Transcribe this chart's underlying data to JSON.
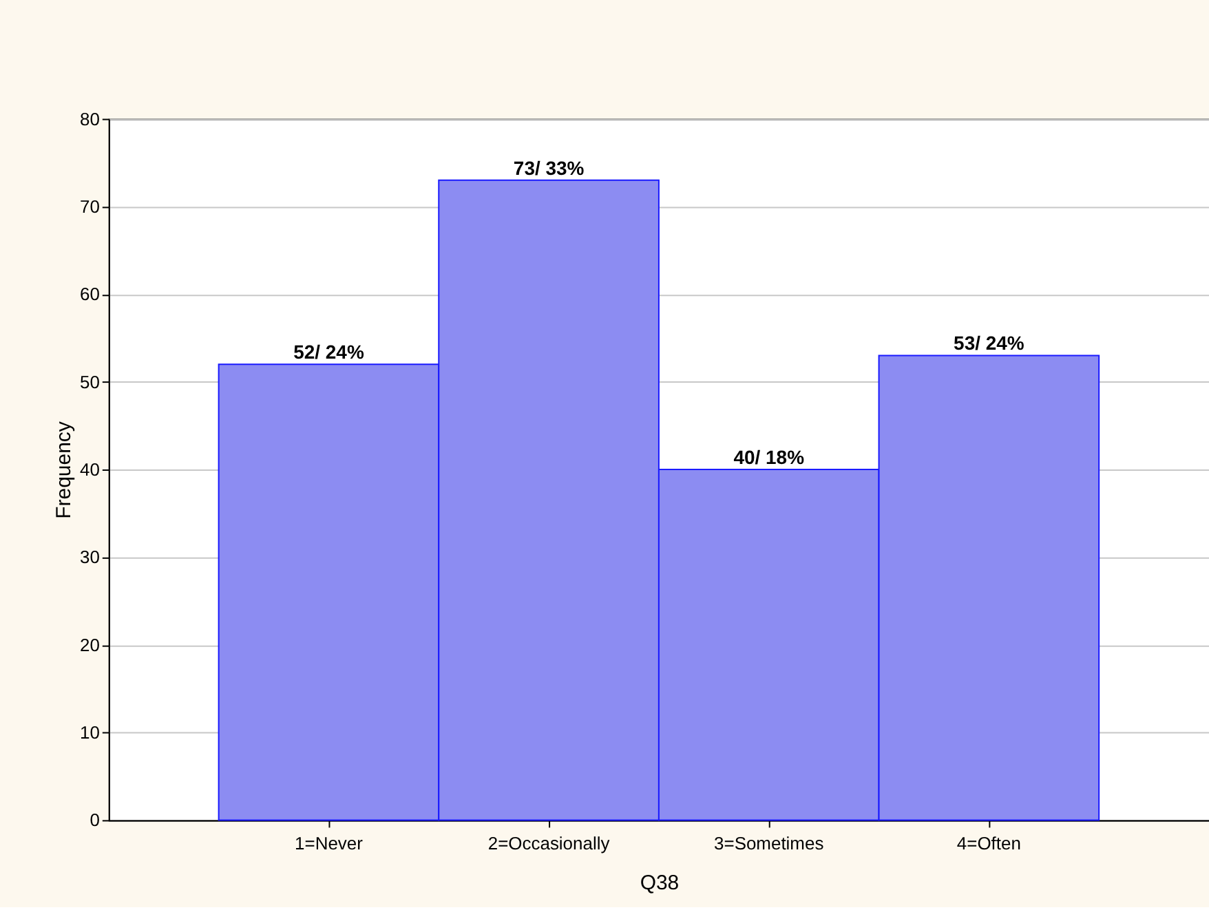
{
  "chart_data": {
    "type": "bar",
    "xlabel": "Q38",
    "ylabel": "Frequency",
    "categories": [
      "1=Never",
      "2=Occasionally",
      "3=Sometimes",
      "4=Often"
    ],
    "values": [
      52,
      73,
      40,
      53
    ],
    "value_labels": [
      "52/ 24%",
      "73/ 33%",
      "40/ 18%",
      "53/ 24%"
    ],
    "color": "#8c8cf2",
    "ylim": [
      0,
      80
    ],
    "yticks": [
      0,
      10,
      20,
      30,
      40,
      50,
      60,
      70,
      80
    ],
    "grid": "y"
  }
}
